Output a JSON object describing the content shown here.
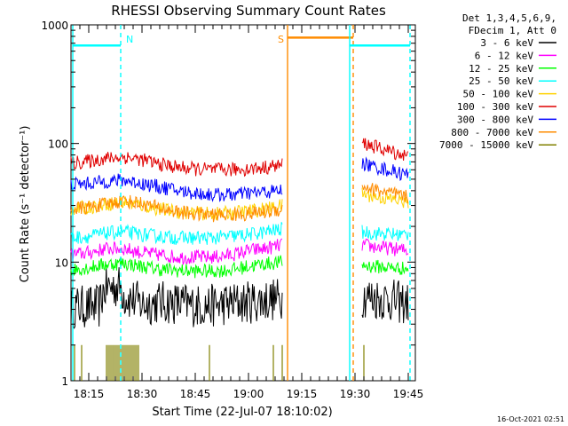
{
  "chart_data": {
    "type": "line",
    "title": "RHESSI Observing Summary Count Rates",
    "xlabel": "Start Time (22-Jul-07 18:10:02)",
    "ylabel": "Count Rate (s⁻¹ detector⁻¹)",
    "x_unit": "minutes since 18:10:02",
    "xlim": [
      0,
      97
    ],
    "ylim": [
      1,
      1000
    ],
    "y_scale": "log",
    "y_ticks": [
      1,
      10,
      100,
      1000
    ],
    "y_tick_labels": [
      "1",
      "10",
      "100",
      "1000"
    ],
    "x_ticks": [
      5,
      20,
      35,
      50,
      65,
      80,
      95
    ],
    "x_tick_labels": [
      "18:15",
      "18:30",
      "18:45",
      "19:00",
      "19:15",
      "19:30",
      "19:45"
    ],
    "grid": false,
    "legend": {
      "position": "top-right",
      "header": [
        "Det 1,3,4,5,6,9,",
        "FDecim 1, Att 0"
      ]
    },
    "series": [
      {
        "name": "3 - 6 keV",
        "color": "#000000",
        "segments": [
          {
            "x": [
              0,
              8,
              9,
              10,
              14,
              15,
              20,
              25,
              30,
              35,
              40,
              45,
              50,
              55,
              59.5
            ],
            "y": [
              4.2,
              4.2,
              5.5,
              6.2,
              6.2,
              5.2,
              4.4,
              4.6,
              4.5,
              4.3,
              4.3,
              4.5,
              4.6,
              4.8,
              4.9
            ]
          },
          {
            "x": [
              82,
              85,
              90,
              92,
              95
            ],
            "y": [
              5.2,
              5.0,
              4.8,
              4.6,
              4.5
            ]
          }
        ]
      },
      {
        "name": "6 - 12 keV",
        "color": "#ff00ff",
        "segments": [
          {
            "x": [
              0,
              5,
              10,
              15,
              20,
              25,
              30,
              35,
              40,
              45,
              50,
              55,
              59.5
            ],
            "y": [
              11.5,
              12.0,
              13.0,
              13.0,
              12.0,
              11.5,
              11.0,
              11.0,
              11.0,
              11.5,
              12.5,
              13.0,
              14.0
            ]
          },
          {
            "x": [
              82,
              85,
              90,
              95
            ],
            "y": [
              14.0,
              13.5,
              13.0,
              12.5
            ]
          }
        ]
      },
      {
        "name": "12 - 25 keV",
        "color": "#00ff00",
        "segments": [
          {
            "x": [
              0,
              5,
              10,
              15,
              20,
              25,
              30,
              35,
              40,
              45,
              50,
              55,
              59.5
            ],
            "y": [
              8.6,
              9.0,
              9.6,
              9.8,
              9.2,
              8.7,
              8.5,
              8.4,
              8.4,
              8.6,
              9.2,
              9.7,
              10.0
            ]
          },
          {
            "x": [
              82,
              85,
              90,
              95
            ],
            "y": [
              9.4,
              9.2,
              9.0,
              8.8
            ]
          }
        ]
      },
      {
        "name": "25 - 50 keV",
        "color": "#00ffff",
        "segments": [
          {
            "x": [
              0,
              5,
              10,
              15,
              20,
              25,
              30,
              35,
              40,
              45,
              50,
              55,
              59.5
            ],
            "y": [
              16.0,
              16.5,
              17.5,
              18.0,
              17.0,
              16.5,
              16.0,
              16.0,
              16.0,
              16.5,
              17.0,
              18.0,
              19.0
            ]
          },
          {
            "x": [
              82,
              85,
              90,
              95
            ],
            "y": [
              18.0,
              17.5,
              17.2,
              17.0
            ]
          }
        ]
      },
      {
        "name": "50 - 100 keV",
        "color": "#ffd200",
        "segments": [
          {
            "x": [
              0,
              5,
              10,
              15,
              20,
              25,
              30,
              35,
              40,
              45,
              50,
              55,
              59.5
            ],
            "y": [
              28.0,
              29.0,
              31.0,
              32.0,
              30.0,
              28.0,
              26.5,
              26.0,
              25.5,
              26.0,
              27.0,
              28.0,
              30.0
            ]
          },
          {
            "x": [
              82,
              85,
              90,
              95
            ],
            "y": [
              38.0,
              36.0,
              34.0,
              32.0
            ]
          }
        ]
      },
      {
        "name": "100 - 300 keV",
        "color": "#e00000",
        "segments": [
          {
            "x": [
              0,
              5,
              10,
              15,
              20,
              25,
              30,
              35,
              40,
              45,
              50,
              55,
              59.5
            ],
            "y": [
              68.0,
              71.0,
              75.0,
              77.0,
              73.0,
              67.0,
              63.0,
              61.0,
              60.0,
              60.0,
              61.0,
              63.0,
              66.0
            ]
          },
          {
            "x": [
              82,
              84,
              86,
              88,
              90,
              95
            ],
            "y": [
              102.0,
              97.0,
              93.0,
              89.0,
              86.0,
              78.0
            ]
          }
        ]
      },
      {
        "name": "300 - 800 keV",
        "color": "#0000ff",
        "segments": [
          {
            "x": [
              0,
              5,
              10,
              15,
              20,
              25,
              30,
              35,
              40,
              45,
              50,
              55,
              59.5
            ],
            "y": [
              45.0,
              46.0,
              48.0,
              49.0,
              46.0,
              43.0,
              40.0,
              38.0,
              37.0,
              37.0,
              38.0,
              39.0,
              40.0
            ]
          },
          {
            "x": [
              82,
              85,
              90,
              95
            ],
            "y": [
              68.0,
              64.0,
              59.0,
              54.0
            ]
          }
        ]
      },
      {
        "name": "800 - 7000 keV",
        "color": "#ff8c00",
        "segments": [
          {
            "x": [
              0,
              5,
              10,
              15,
              20,
              25,
              30,
              35,
              40,
              45,
              50,
              55,
              59.5
            ],
            "y": [
              28.0,
              29.0,
              31.0,
              33.0,
              31.0,
              28.5,
              26.5,
              25.5,
              25.0,
              25.0,
              25.5,
              26.5,
              28.0
            ]
          },
          {
            "x": [
              82,
              85,
              90,
              95
            ],
            "y": [
              44.0,
              41.0,
              38.0,
              35.0
            ]
          }
        ]
      },
      {
        "name": "7000 - 15000 keV",
        "color": "#808000",
        "segments": [],
        "spikes_x": [
          1.0,
          3.0,
          10.0,
          10.5,
          11.0,
          11.5,
          12.0,
          12.5,
          13.0,
          13.5,
          14.0,
          14.5,
          15.0,
          15.5,
          16.0,
          16.5,
          17.0,
          17.5,
          18.0,
          18.5,
          19.0,
          39.0,
          57.0,
          59.5,
          82.5
        ],
        "spike_y": 2.0
      }
    ],
    "markers": [
      {
        "type": "vline",
        "x": 0.5,
        "color": "#00ffff",
        "style": "solid"
      },
      {
        "type": "vline",
        "x": 14.0,
        "color": "#00ffff",
        "style": "dashed",
        "label": "N"
      },
      {
        "type": "hsegment",
        "x": [
          0.5,
          14.0
        ],
        "y": 670,
        "color": "#00ffff"
      },
      {
        "type": "vline",
        "x": 61.0,
        "color": "#ff8c00",
        "style": "solid",
        "label": "S"
      },
      {
        "type": "hsegment",
        "x": [
          61.0,
          79.5
        ],
        "y": 780,
        "color": "#ff8c00"
      },
      {
        "type": "vline",
        "x": 79.5,
        "color": "#ff8c00",
        "style": "dashed"
      },
      {
        "type": "vline",
        "x": 78.5,
        "color": "#00ffff",
        "style": "solid"
      },
      {
        "type": "hsegment",
        "x": [
          78.5,
          95.5
        ],
        "y": 670,
        "color": "#00ffff"
      },
      {
        "type": "vline",
        "x": 95.5,
        "color": "#00ffff",
        "style": "dashed"
      }
    ]
  },
  "footer": {
    "timestamp": "16-Oct-2021 02:51"
  }
}
